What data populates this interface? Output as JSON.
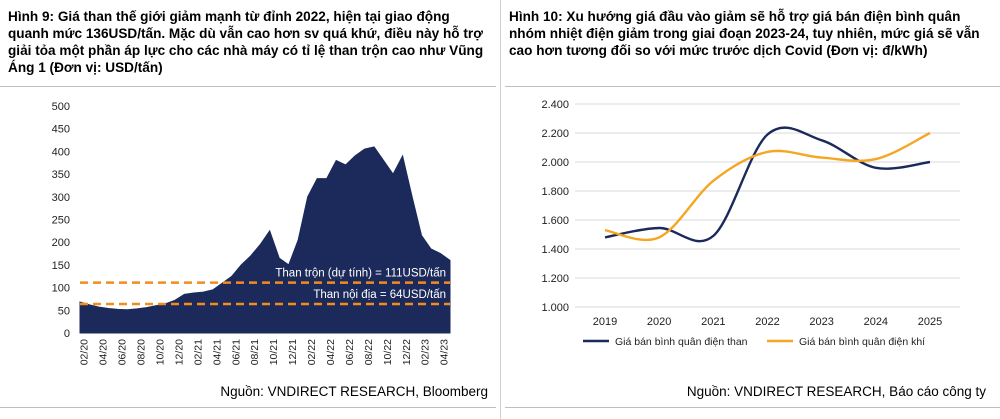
{
  "figures": [
    {
      "title": "Hình 9: Giá than thế giới giảm mạnh từ đỉnh 2022, hiện tại giao động quanh mức 136USD/tấn. Mặc dù vẫn cao hơn sv quá khứ, điều này hỗ trợ giải tỏa một phần áp lực cho các nhà máy có tỉ lệ than trộn cao như Vũng Áng 1 (Đơn vị: USD/tấn)",
      "source": "Nguồn: VNDIRECT RESEARCH, Bloomberg"
    },
    {
      "title": "Hình 10:  Xu hướng giá đầu vào giảm sẽ hỗ trợ giá bán điện bình quân nhóm nhiệt điện giảm trong giai đoạn 2023-24, tuy nhiên, mức giá sẽ vẫn cao hơn tương đối so với mức trước dịch Covid (Đơn vị: đ/kWh)",
      "source": "Nguồn: VNDIRECT RESEARCH, Báo cáo công ty"
    }
  ],
  "chart_data": [
    {
      "type": "area",
      "title": "",
      "xlabel": "",
      "ylabel": "",
      "ylim": [
        0,
        500
      ],
      "yticks": [
        0,
        50,
        100,
        150,
        200,
        250,
        300,
        350,
        400,
        450,
        500
      ],
      "xtick_labels": [
        "02/20",
        "04/20",
        "06/20",
        "08/20",
        "10/20",
        "12/20",
        "02/21",
        "04/21",
        "06/21",
        "08/21",
        "10/21",
        "12/21",
        "02/22",
        "04/22",
        "06/22",
        "08/22",
        "10/22",
        "12/22",
        "02/23",
        "04/23"
      ],
      "series": [
        {
          "type": "area",
          "color": "#1b2a5a",
          "x": [
            "02/20",
            "03/20",
            "04/20",
            "05/20",
            "06/20",
            "07/20",
            "08/20",
            "09/20",
            "10/20",
            "11/20",
            "12/20",
            "01/21",
            "02/21",
            "03/21",
            "04/21",
            "05/21",
            "06/21",
            "07/21",
            "08/21",
            "09/21",
            "10/21",
            "11/21",
            "12/21",
            "01/22",
            "02/22",
            "03/22",
            "04/22",
            "05/22",
            "06/22",
            "07/22",
            "08/22",
            "09/22",
            "10/22",
            "11/22",
            "12/22",
            "01/23",
            "02/23",
            "03/23",
            "04/23",
            "05/23"
          ],
          "values": [
            68,
            62,
            57,
            54,
            52,
            51,
            53,
            56,
            60,
            64,
            72,
            85,
            88,
            90,
            95,
            110,
            125,
            150,
            170,
            195,
            225,
            165,
            150,
            205,
            300,
            340,
            340,
            380,
            370,
            390,
            405,
            410,
            380,
            350,
            390,
            300,
            215,
            185,
            175,
            160
          ]
        }
      ],
      "reference_lines": [
        {
          "label": "Than trộn (dự tính) = 111USD/tấn",
          "value": 111,
          "color": "#f28c1e",
          "style": "dashed"
        },
        {
          "label": "Than nội địa = 64USD/tấn",
          "value": 64,
          "color": "#f28c1e",
          "style": "dashed"
        }
      ],
      "grid": false
    },
    {
      "type": "line",
      "title": "",
      "xlabel": "",
      "ylabel": "",
      "categories": [
        "2019",
        "2020",
        "2021",
        "2022",
        "2023",
        "2024",
        "2025"
      ],
      "yticks": [
        "1.000",
        "1.200",
        "1.400",
        "1.600",
        "1.800",
        "2.000",
        "2.200",
        "2.400"
      ],
      "ylim": [
        1000,
        2400
      ],
      "grid": true,
      "legend_position": "bottom",
      "series": [
        {
          "name": "Giá bán bình quân điện than",
          "color": "#1b2a5a",
          "values": [
            1480,
            1545,
            1490,
            2190,
            2150,
            1960,
            2000
          ]
        },
        {
          "name": "Giá bán bình quân điện khí",
          "color": "#f5a623",
          "values": [
            1530,
            1480,
            1870,
            2070,
            2030,
            2020,
            2200
          ]
        }
      ]
    }
  ]
}
